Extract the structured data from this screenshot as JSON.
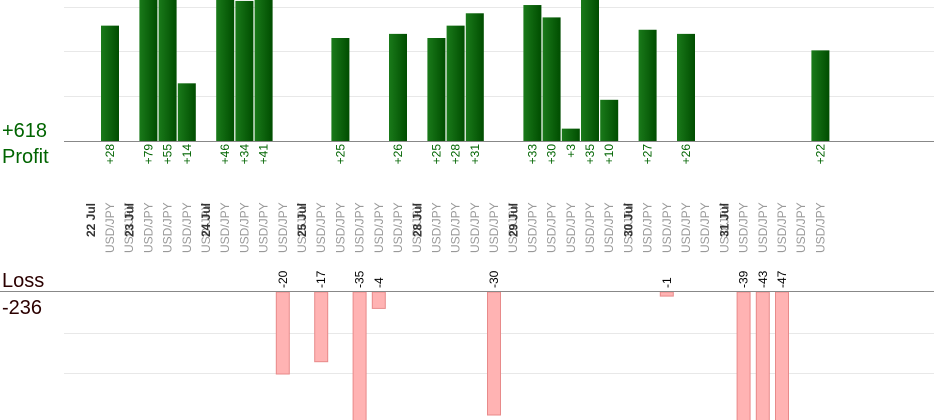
{
  "summary": {
    "profit_total": "+618",
    "profit_label": "Profit",
    "loss_label": "Loss",
    "loss_total": "-236"
  },
  "colors": {
    "profit_text": "#006400",
    "profit_bar_light": "#1a7a1a",
    "profit_bar_dark": "#004d00",
    "loss_text": "#2b0000",
    "loss_bar_fill": "#ffb3b3",
    "loss_bar_stroke": "#e88a8a",
    "grid": "#e8e8e8",
    "axis": "#888888"
  },
  "chart_data": {
    "type": "bar",
    "xlabel": "",
    "ylabel": "",
    "profit_ylim": [
      0,
      35
    ],
    "loss_ylim": [
      0,
      35
    ],
    "categories": [
      {
        "date": "22 Jul",
        "pair": "USD/JPY",
        "profit": 28,
        "loss": null
      },
      {
        "date": "",
        "pair": "USD/JPY",
        "profit": null,
        "loss": null
      },
      {
        "date": "23 Jul",
        "pair": "USD/JPY",
        "profit": 79,
        "loss": null
      },
      {
        "date": "",
        "pair": "USD/JPY",
        "profit": 55,
        "loss": null
      },
      {
        "date": "",
        "pair": "USD/JPY",
        "profit": 14,
        "loss": null
      },
      {
        "date": "",
        "pair": "USD/JPY",
        "profit": null,
        "loss": null
      },
      {
        "date": "24 Jul",
        "pair": "USD/JPY",
        "profit": 46,
        "loss": null
      },
      {
        "date": "",
        "pair": "USD/JPY",
        "profit": 34,
        "loss": null
      },
      {
        "date": "",
        "pair": "USD/JPY",
        "profit": 41,
        "loss": null
      },
      {
        "date": "",
        "pair": "USD/JPY",
        "profit": null,
        "loss": -20
      },
      {
        "date": "",
        "pair": "USD/JPY",
        "profit": null,
        "loss": null
      },
      {
        "date": "25 Jul",
        "pair": "USD/JPY",
        "profit": null,
        "loss": -17
      },
      {
        "date": "",
        "pair": "USD/JPY",
        "profit": 25,
        "loss": null
      },
      {
        "date": "",
        "pair": "USD/JPY",
        "profit": null,
        "loss": -35
      },
      {
        "date": "",
        "pair": "USD/JPY",
        "profit": null,
        "loss": -4
      },
      {
        "date": "",
        "pair": "USD/JPY",
        "profit": 26,
        "loss": null
      },
      {
        "date": "",
        "pair": "USD/JPY",
        "profit": null,
        "loss": null
      },
      {
        "date": "28 Jul",
        "pair": "USD/JPY",
        "profit": 25,
        "loss": null
      },
      {
        "date": "",
        "pair": "USD/JPY",
        "profit": 28,
        "loss": null
      },
      {
        "date": "",
        "pair": "USD/JPY",
        "profit": 31,
        "loss": null
      },
      {
        "date": "",
        "pair": "USD/JPY",
        "profit": null,
        "loss": -30
      },
      {
        "date": "",
        "pair": "USD/JPY",
        "profit": null,
        "loss": null
      },
      {
        "date": "29 Jul",
        "pair": "USD/JPY",
        "profit": 33,
        "loss": null
      },
      {
        "date": "",
        "pair": "USD/JPY",
        "profit": 30,
        "loss": null
      },
      {
        "date": "",
        "pair": "USD/JPY",
        "profit": 3,
        "loss": null
      },
      {
        "date": "",
        "pair": "USD/JPY",
        "profit": 35,
        "loss": null
      },
      {
        "date": "",
        "pair": "USD/JPY",
        "profit": 10,
        "loss": null
      },
      {
        "date": "",
        "pair": "USD/JPY",
        "profit": null,
        "loss": null
      },
      {
        "date": "30 Jul",
        "pair": "USD/JPY",
        "profit": 27,
        "loss": null
      },
      {
        "date": "",
        "pair": "USD/JPY",
        "profit": null,
        "loss": -1
      },
      {
        "date": "",
        "pair": "USD/JPY",
        "profit": 26,
        "loss": null
      },
      {
        "date": "",
        "pair": "USD/JPY",
        "profit": null,
        "loss": null
      },
      {
        "date": "",
        "pair": "USD/JPY",
        "profit": null,
        "loss": null
      },
      {
        "date": "31 Jul",
        "pair": "USD/JPY",
        "profit": null,
        "loss": -39
      },
      {
        "date": "",
        "pair": "USD/JPY",
        "profit": null,
        "loss": -43
      },
      {
        "date": "",
        "pair": "USD/JPY",
        "profit": null,
        "loss": -47
      },
      {
        "date": "",
        "pair": "USD/JPY",
        "profit": null,
        "loss": null
      },
      {
        "date": "",
        "pair": "USD/JPY",
        "profit": 22,
        "loss": null
      }
    ]
  }
}
